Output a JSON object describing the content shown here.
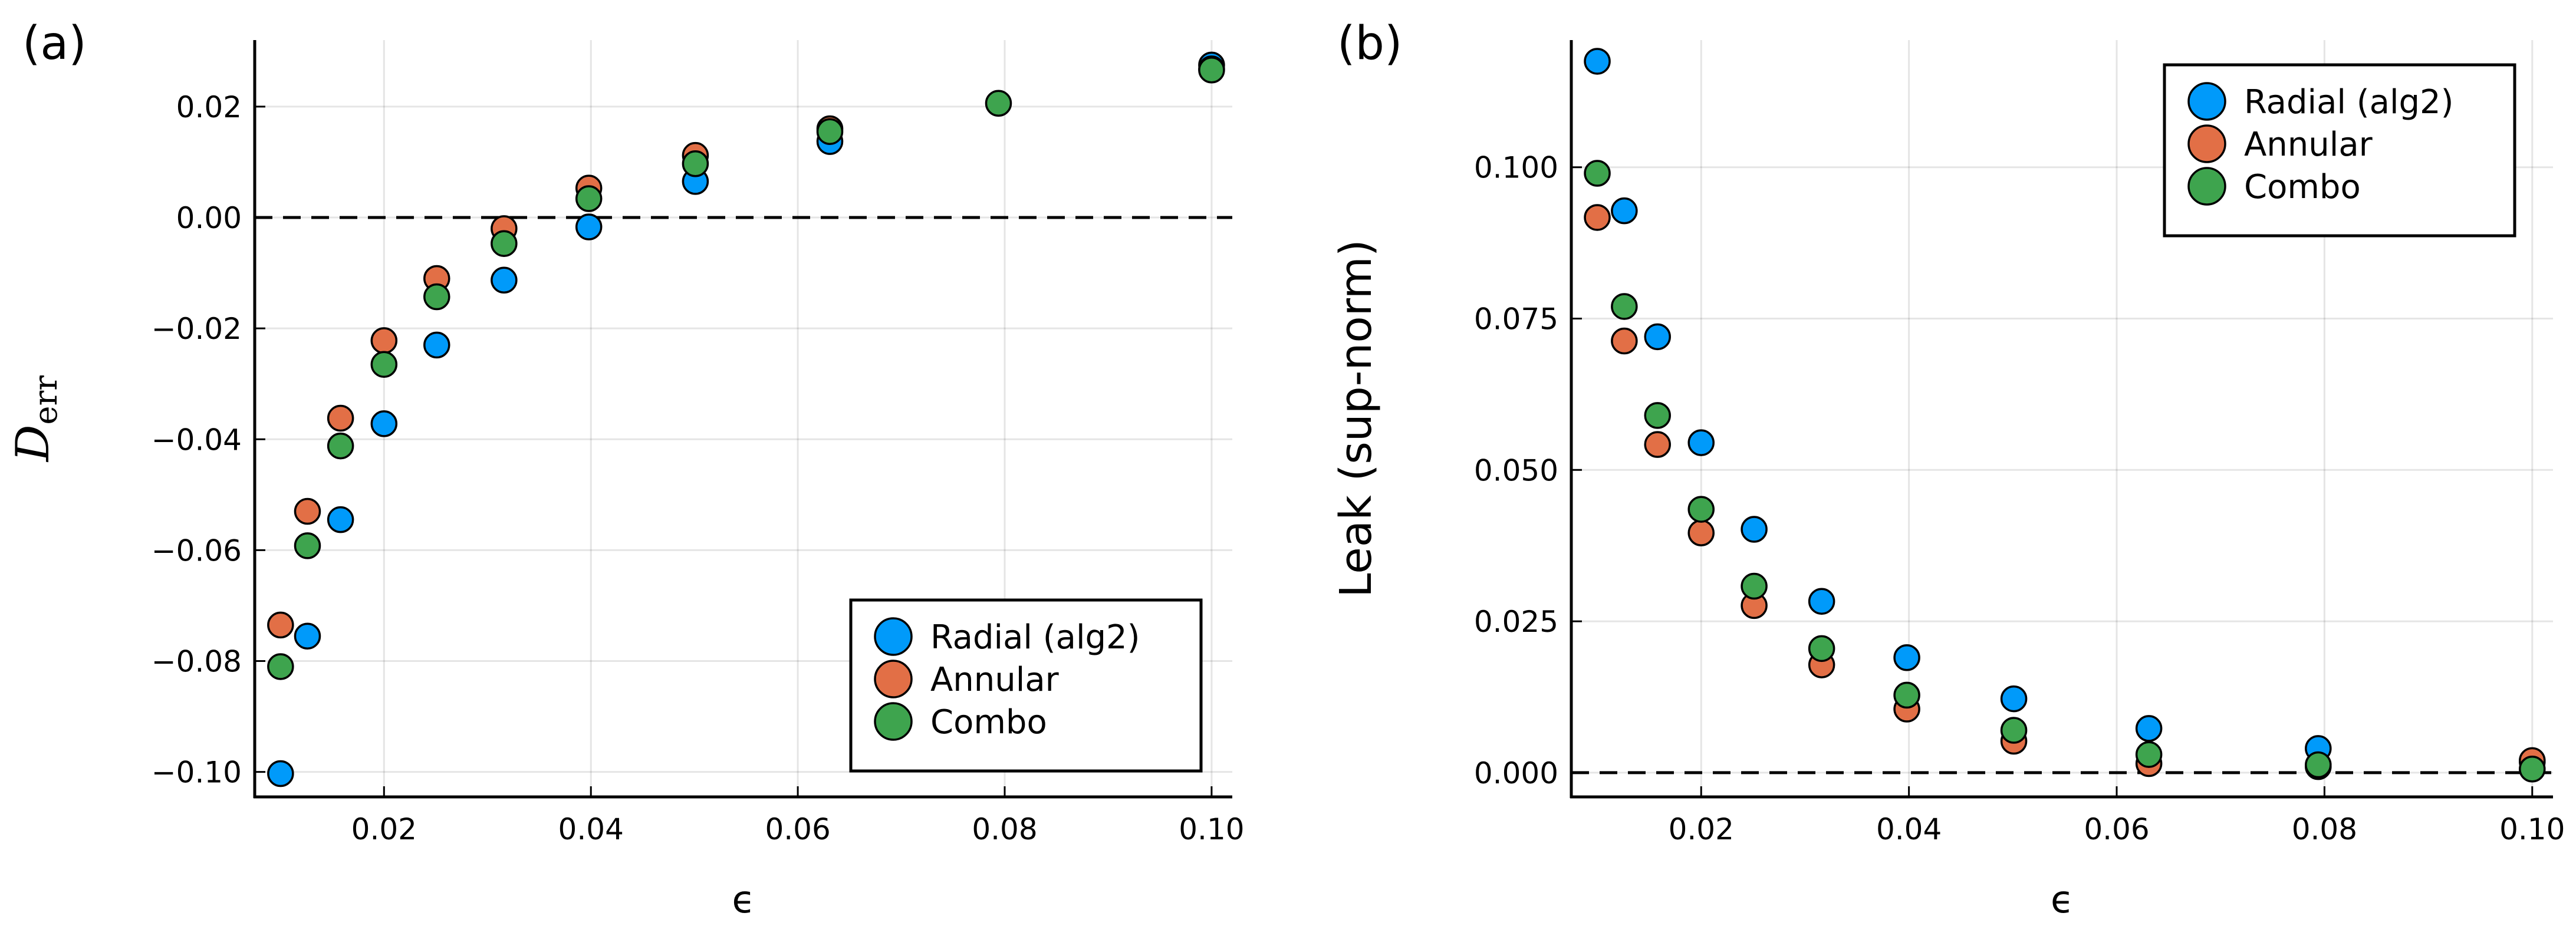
{
  "colors": {
    "Radial (alg2)": "#009AFA",
    "Annular": "#E26F46",
    "Combo": "#3EA44E"
  },
  "chart_data": [
    {
      "type": "scatter",
      "panel_label": "(a)",
      "xlabel": "ϵ",
      "ylabel_main": "D",
      "ylabel_sub": "err",
      "xlim": [
        0.0075,
        0.102
      ],
      "ylim": [
        -0.1045,
        0.032
      ],
      "xticks": [
        0.02,
        0.04,
        0.06,
        0.08,
        0.1
      ],
      "xtick_labels": [
        "0.02",
        "0.04",
        "0.06",
        "0.08",
        "0.10"
      ],
      "yticks": [
        -0.1,
        -0.08,
        -0.06,
        -0.04,
        -0.02,
        0.0,
        0.02
      ],
      "ytick_labels": [
        "−0.10",
        "−0.08",
        "−0.06",
        "−0.04",
        "−0.02",
        "0.00",
        "0.02"
      ],
      "reference_line": 0.0,
      "grid": true,
      "legend_position": "bottom-right",
      "series": [
        {
          "name": "Radial (alg2)",
          "x": [
            0.01,
            0.0126,
            0.0158,
            0.02,
            0.0251,
            0.0316,
            0.0398,
            0.0501,
            0.0631,
            0.1
          ],
          "y": [
            -0.1003,
            -0.0755,
            -0.0545,
            -0.0372,
            -0.023,
            -0.0113,
            -0.0017,
            0.0065,
            0.0137,
            0.0275
          ]
        },
        {
          "name": "Annular",
          "x": [
            0.01,
            0.0126,
            0.0158,
            0.02,
            0.0251,
            0.0316,
            0.0398,
            0.0501,
            0.0631,
            0.1
          ],
          "y": [
            -0.0735,
            -0.053,
            -0.0362,
            -0.0222,
            -0.011,
            -0.002,
            0.0053,
            0.0112,
            0.016,
            0.0268
          ]
        },
        {
          "name": "Combo",
          "x": [
            0.01,
            0.0126,
            0.0158,
            0.02,
            0.0251,
            0.0316,
            0.0398,
            0.0501,
            0.0631,
            0.0794,
            0.1
          ],
          "y": [
            -0.081,
            -0.0592,
            -0.0412,
            -0.0265,
            -0.0143,
            -0.0047,
            0.0034,
            0.0097,
            0.0155,
            0.0206,
            0.0266
          ]
        }
      ]
    },
    {
      "type": "scatter",
      "panel_label": "(b)",
      "xlabel": "ϵ",
      "ylabel": "Leak (sup-norm)",
      "xlim": [
        0.0075,
        0.102
      ],
      "ylim": [
        -0.004,
        0.121
      ],
      "xticks": [
        0.02,
        0.04,
        0.06,
        0.08,
        0.1
      ],
      "xtick_labels": [
        "0.02",
        "0.04",
        "0.06",
        "0.08",
        "0.10"
      ],
      "yticks": [
        0.0,
        0.025,
        0.05,
        0.075,
        0.1
      ],
      "ytick_labels": [
        "0.000",
        "0.025",
        "0.050",
        "0.075",
        "0.100"
      ],
      "reference_line": 0.0,
      "grid": true,
      "legend_position": "top-right",
      "series": [
        {
          "name": "Radial (alg2)",
          "x": [
            0.01,
            0.0126,
            0.0158,
            0.02,
            0.0251,
            0.0316,
            0.0398,
            0.0501,
            0.0631,
            0.0794,
            0.1
          ],
          "y": [
            0.1175,
            0.0928,
            0.072,
            0.0545,
            0.0402,
            0.0283,
            0.019,
            0.0122,
            0.0073,
            0.004,
            0.0018
          ]
        },
        {
          "name": "Annular",
          "x": [
            0.01,
            0.0126,
            0.0158,
            0.02,
            0.0251,
            0.0316,
            0.0398,
            0.0501,
            0.0631,
            0.0794,
            0.1
          ],
          "y": [
            0.0917,
            0.0713,
            0.0542,
            0.0396,
            0.0276,
            0.0178,
            0.0105,
            0.0052,
            0.0015,
            0.001,
            0.002
          ]
        },
        {
          "name": "Combo",
          "x": [
            0.01,
            0.0126,
            0.0158,
            0.02,
            0.0251,
            0.0316,
            0.0398,
            0.0501,
            0.0631,
            0.0794,
            0.1
          ],
          "y": [
            0.099,
            0.077,
            0.059,
            0.0435,
            0.0308,
            0.0205,
            0.0128,
            0.007,
            0.003,
            0.0013,
            0.0006
          ]
        }
      ]
    }
  ]
}
